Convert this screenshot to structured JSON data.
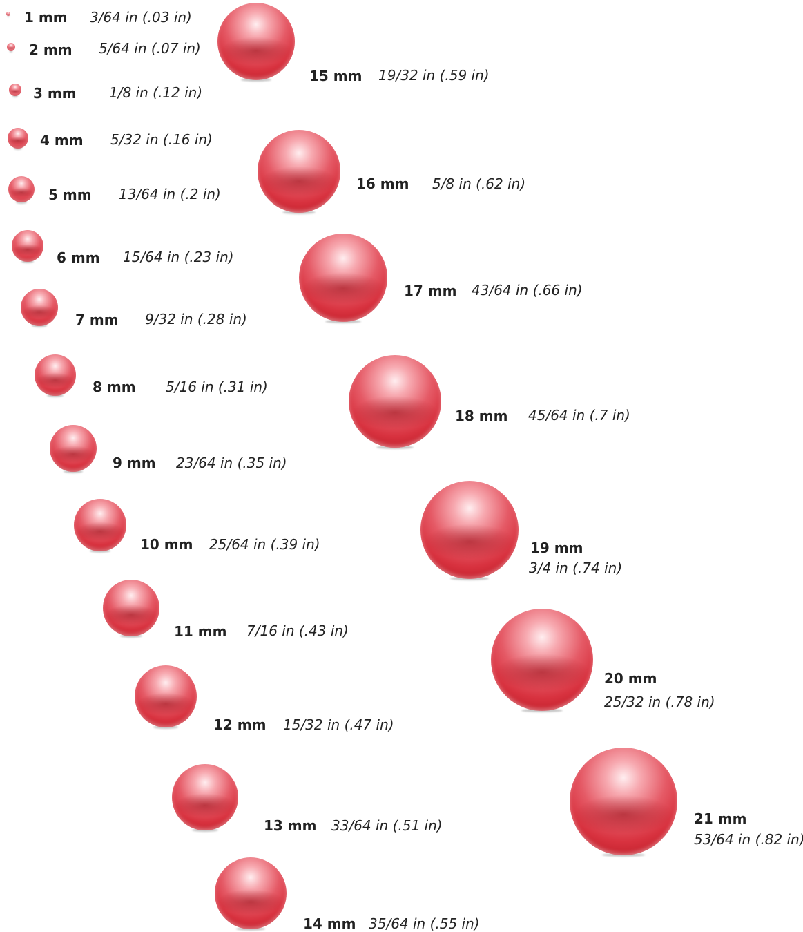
{
  "chart_data": {
    "type": "table",
    "beads": [
      {
        "mm": "1 mm",
        "inch": "3/64 in (.03 in)"
      },
      {
        "mm": "2 mm",
        "inch": "5/64 in (.07 in)"
      },
      {
        "mm": "3 mm",
        "inch": "1/8 in (.12 in)"
      },
      {
        "mm": "4 mm",
        "inch": "5/32 in (.16 in)"
      },
      {
        "mm": "5 mm",
        "inch": "13/64 in (.2 in)"
      },
      {
        "mm": "6 mm",
        "inch": "15/64 in (.23 in)"
      },
      {
        "mm": "7 mm",
        "inch": "9/32 in (.28 in)"
      },
      {
        "mm": "8 mm",
        "inch": "5/16 in (.31 in)"
      },
      {
        "mm": "9 mm",
        "inch": "23/64 in (.35 in)"
      },
      {
        "mm": "10 mm",
        "inch": "25/64 in (.39 in)"
      },
      {
        "mm": "11 mm",
        "inch": "7/16 in (.43 in)"
      },
      {
        "mm": "12 mm",
        "inch": "15/32 in (.47 in)"
      },
      {
        "mm": "13 mm",
        "inch": "33/64 in (.51 in)"
      },
      {
        "mm": "14 mm",
        "inch": "35/64 in (.55 in)"
      },
      {
        "mm": "15 mm",
        "inch": "19/32 in (.59 in)"
      },
      {
        "mm": "16 mm",
        "inch": "5/8 in (.62 in)"
      },
      {
        "mm": "17 mm",
        "inch": "43/64 in (.66 in)"
      },
      {
        "mm": "18 mm",
        "inch": "45/64 in (.7 in)"
      },
      {
        "mm": "19 mm",
        "inch": "3/4 in (.74 in)"
      },
      {
        "mm": "20 mm",
        "inch": "25/32 in (.78 in)"
      },
      {
        "mm": "21 mm",
        "inch": "53/64 in (.82 in)"
      }
    ],
    "colors": {
      "bead": "#d8323f",
      "text": "#222222"
    }
  }
}
